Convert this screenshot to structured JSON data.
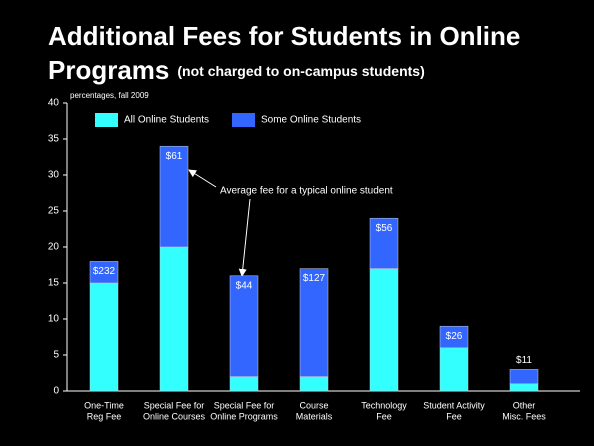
{
  "chart_data": {
    "type": "stacked_bar",
    "title": [
      "Additional Fees for Students in Online",
      "Programs"
    ],
    "subtitle": "(not charged to on-campus students)",
    "axis_note": "percentages, fall 2009",
    "categories": [
      [
        "One-Time",
        "Reg Fee"
      ],
      [
        "Special Fee for",
        "Online Courses"
      ],
      [
        "Special Fee for",
        "Online Programs"
      ],
      [
        "Course",
        "Materials"
      ],
      [
        "Technology",
        "Fee"
      ],
      [
        "Student Activity",
        "Fee"
      ],
      [
        "Other",
        "Misc. Fees"
      ]
    ],
    "series": [
      {
        "name": "All Online Students",
        "color": "#33ffff",
        "values": [
          15,
          20,
          2,
          2,
          17,
          6,
          1
        ]
      },
      {
        "name": "Some Online Students",
        "color": "#3366ff",
        "values": [
          3,
          14,
          14,
          15,
          7,
          3,
          2
        ]
      }
    ],
    "fee_labels": [
      "$232",
      "$61",
      "$44",
      "$127",
      "$56",
      "$26",
      "$11"
    ],
    "annotation": "Average fee for a typical online student",
    "ylim": [
      0,
      40
    ],
    "yticks": [
      0,
      5,
      10,
      15,
      20,
      25,
      30,
      35,
      40
    ]
  }
}
